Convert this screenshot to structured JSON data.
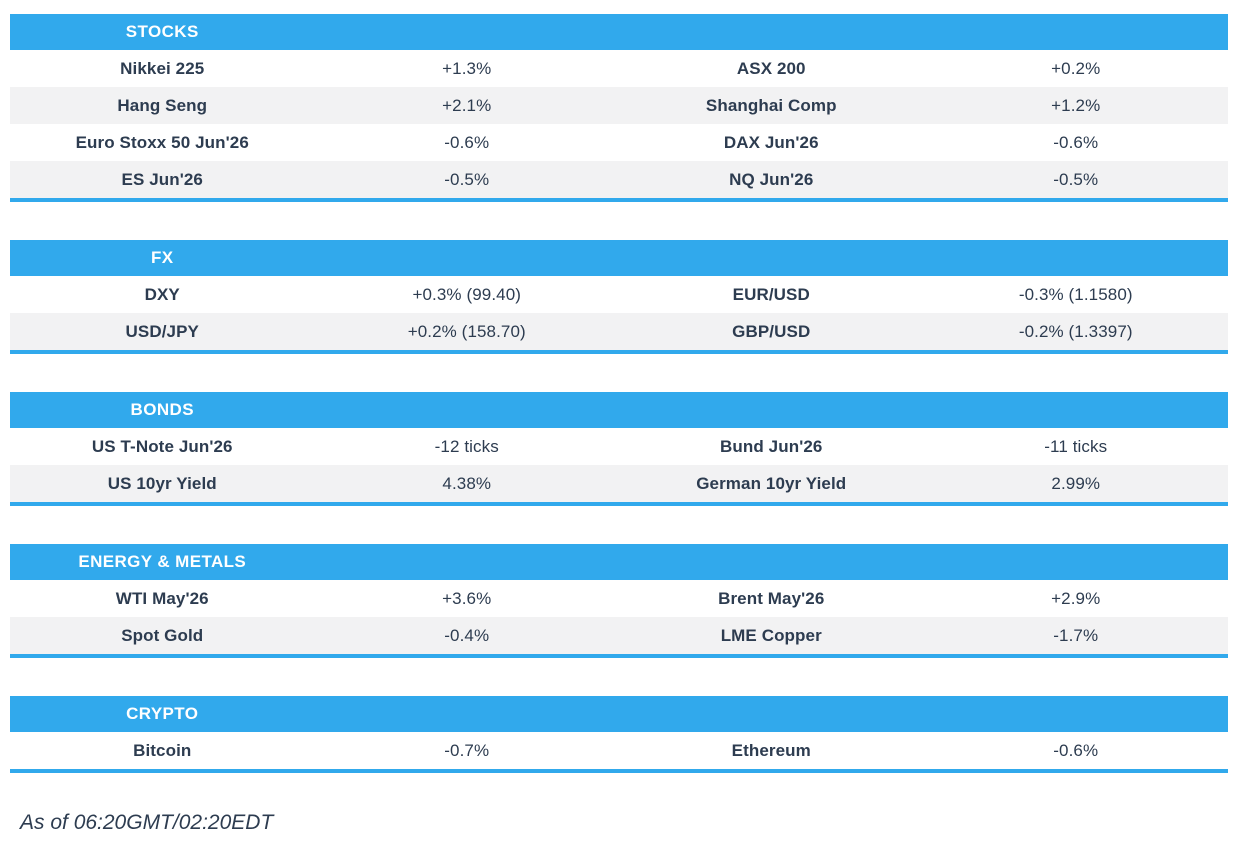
{
  "theme": {
    "accent_blue": "#31a9ec",
    "row_alt_bg": "#f2f2f3",
    "text_color": "#2d3c50",
    "header_text_color": "#ffffff"
  },
  "sections": [
    {
      "title": "STOCKS",
      "rows": [
        {
          "l_label": "Nikkei 225",
          "l_value": "+1.3%",
          "r_label": "ASX 200",
          "r_value": "+0.2%"
        },
        {
          "l_label": "Hang Seng",
          "l_value": "+2.1%",
          "r_label": "Shanghai Comp",
          "r_value": "+1.2%"
        },
        {
          "l_label": "Euro Stoxx 50 Jun'26",
          "l_value": "-0.6%",
          "r_label": "DAX Jun'26",
          "r_value": "-0.6%"
        },
        {
          "l_label": "ES Jun'26",
          "l_value": "-0.5%",
          "r_label": "NQ Jun'26",
          "r_value": "-0.5%"
        }
      ]
    },
    {
      "title": "FX",
      "rows": [
        {
          "l_label": "DXY",
          "l_value": "+0.3% (99.40)",
          "r_label": "EUR/USD",
          "r_value": "-0.3% (1.1580)"
        },
        {
          "l_label": "USD/JPY",
          "l_value": "+0.2% (158.70)",
          "r_label": "GBP/USD",
          "r_value": "-0.2% (1.3397)"
        }
      ]
    },
    {
      "title": "BONDS",
      "rows": [
        {
          "l_label": "US T-Note Jun'26",
          "l_value": "-12 ticks",
          "r_label": "Bund Jun'26",
          "r_value": "-11 ticks"
        },
        {
          "l_label": "US 10yr Yield",
          "l_value": "4.38%",
          "r_label": "German 10yr Yield",
          "r_value": "2.99%"
        }
      ]
    },
    {
      "title": "ENERGY & METALS",
      "rows": [
        {
          "l_label": "WTI May'26",
          "l_value": "+3.6%",
          "r_label": "Brent May'26",
          "r_value": "+2.9%"
        },
        {
          "l_label": "Spot Gold",
          "l_value": "-0.4%",
          "r_label": "LME Copper",
          "r_value": "-1.7%"
        }
      ]
    },
    {
      "title": "CRYPTO",
      "rows": [
        {
          "l_label": "Bitcoin",
          "l_value": "-0.7%",
          "r_label": "Ethereum",
          "r_value": "-0.6%"
        }
      ]
    }
  ],
  "footer": {
    "as_of": "As of 06:20GMT/02:20EDT"
  }
}
